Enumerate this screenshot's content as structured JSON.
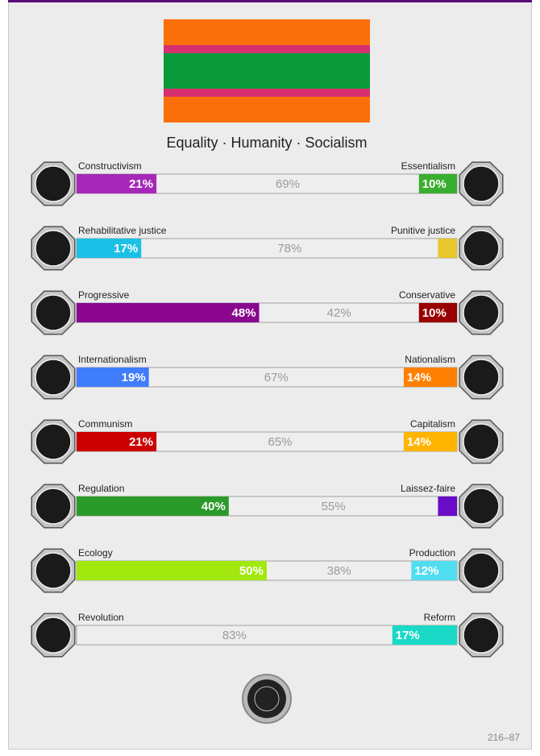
{
  "motto": "Equality · Humanity · Socialism",
  "axes": [
    {
      "left_name": "Constructivism",
      "right_name": "Essentialism",
      "left": {
        "value": 21,
        "label": "21%"
      },
      "middle": {
        "value": 69,
        "label": "69%"
      },
      "right": {
        "value": 10,
        "label": "10%"
      },
      "left_color": "#a628b8",
      "right_color": "#3aae2e"
    },
    {
      "left_name": "Rehabilitative justice",
      "right_name": "Punitive justice",
      "left": {
        "value": 17,
        "label": "17%"
      },
      "middle": {
        "value": 78,
        "label": "78%"
      },
      "right": {
        "value": 5
      },
      "left_color": "#1cc0e6",
      "right_color": "#e8c62c"
    },
    {
      "left_name": "Progressive",
      "right_name": "Conservative",
      "left": {
        "value": 48,
        "label": "48%"
      },
      "middle": {
        "value": 42,
        "label": "42%"
      },
      "right": {
        "value": 10,
        "label": "10%"
      },
      "left_color": "#8a068e",
      "right_color": "#990000"
    },
    {
      "left_name": "Internationalism",
      "right_name": "Nationalism",
      "left": {
        "value": 19,
        "label": "19%"
      },
      "middle": {
        "value": 67,
        "label": "67%"
      },
      "right": {
        "value": 14,
        "label": "14%"
      },
      "left_color": "#3f7dfc",
      "right_color": "#ff8000"
    },
    {
      "left_name": "Communism",
      "right_name": "Capitalism",
      "left": {
        "value": 21,
        "label": "21%"
      },
      "middle": {
        "value": 65,
        "label": "65%"
      },
      "right": {
        "value": 14,
        "label": "14%"
      },
      "left_color": "#cc0000",
      "right_color": "#ffb400"
    },
    {
      "left_name": "Regulation",
      "right_name": "Laissez-faire",
      "left": {
        "value": 40,
        "label": "40%"
      },
      "middle": {
        "value": 55,
        "label": "55%"
      },
      "right": {
        "value": 5
      },
      "left_color": "#2a9b2a",
      "right_color": "#6a0cc8"
    },
    {
      "left_name": "Ecology",
      "right_name": "Production",
      "left": {
        "value": 50,
        "label": "50%"
      },
      "middle": {
        "value": 38,
        "label": "38%"
      },
      "right": {
        "value": 12,
        "label": "12%"
      },
      "left_color": "#a2e80e",
      "right_color": "#50def0"
    },
    {
      "left_name": "Revolution",
      "right_name": "Reform",
      "middle": {
        "value": 83,
        "label": "83%"
      },
      "right": {
        "value": 17,
        "label": "17%"
      },
      "right_color": "#1ad9c6"
    }
  ],
  "footer": "216–87"
}
